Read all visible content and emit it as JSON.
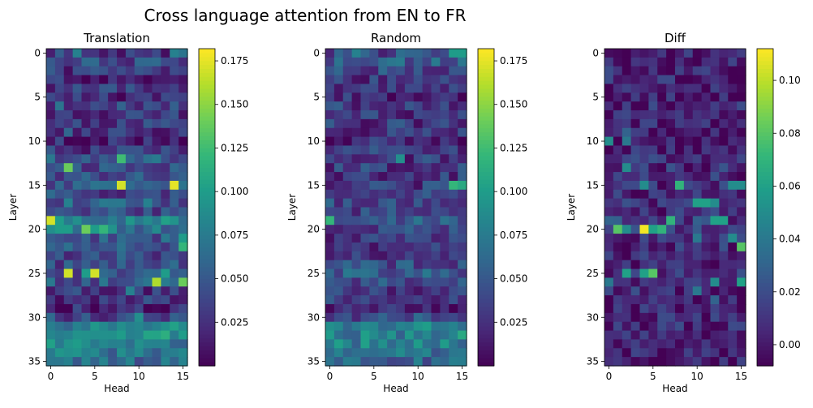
{
  "suptitle": "Cross language attention from EN to FR",
  "colors": {
    "viridis": [
      "#440154",
      "#482878",
      "#3e4989",
      "#31688e",
      "#26828e",
      "#1f9e89",
      "#35b779",
      "#6ece58",
      "#b5de2b",
      "#fde725"
    ]
  },
  "chart_data": [
    {
      "type": "heatmap",
      "title": "Translation",
      "xlabel": "Head",
      "ylabel": "Layer",
      "rows": 36,
      "cols": 16,
      "xticks": [
        0,
        5,
        10,
        15
      ],
      "yticks": [
        0,
        5,
        10,
        15,
        20,
        25,
        30,
        35
      ],
      "colorbar": {
        "min": 0.0,
        "max": 0.182,
        "ticks": [
          0.025,
          0.05,
          0.075,
          0.1,
          0.125,
          0.15,
          0.175
        ],
        "tick_labels": [
          "0.025",
          "0.050",
          "0.075",
          "0.100",
          "0.125",
          "0.150",
          "0.175"
        ]
      },
      "base_rows": [
        0.03,
        0.04,
        0.03,
        0.02,
        0.03,
        0.02,
        0.04,
        0.03,
        0.03,
        0.03,
        0.02,
        0.03,
        0.05,
        0.04,
        0.04,
        0.05,
        0.04,
        0.05,
        0.04,
        0.08,
        0.07,
        0.05,
        0.05,
        0.04,
        0.04,
        0.04,
        0.05,
        0.03,
        0.03,
        0.02,
        0.04,
        0.08,
        0.09,
        0.08,
        0.07,
        0.06
      ],
      "highlights": [
        [
          0,
          3,
          0.08
        ],
        [
          0,
          14,
          0.08
        ],
        [
          0,
          15,
          0.07
        ],
        [
          6,
          1,
          0.07
        ],
        [
          9,
          2,
          0.06
        ],
        [
          12,
          8,
          0.125
        ],
        [
          13,
          2,
          0.14
        ],
        [
          15,
          8,
          0.17
        ],
        [
          15,
          14,
          0.175
        ],
        [
          17,
          2,
          0.08
        ],
        [
          17,
          11,
          0.08
        ],
        [
          19,
          0,
          0.17
        ],
        [
          19,
          3,
          0.09
        ],
        [
          20,
          1,
          0.1
        ],
        [
          20,
          2,
          0.1
        ],
        [
          20,
          4,
          0.14
        ],
        [
          20,
          5,
          0.1
        ],
        [
          20,
          6,
          0.12
        ],
        [
          21,
          15,
          0.1
        ],
        [
          22,
          15,
          0.12
        ],
        [
          25,
          2,
          0.17
        ],
        [
          25,
          4,
          0.1
        ],
        [
          25,
          5,
          0.17
        ],
        [
          25,
          13,
          0.1
        ],
        [
          26,
          12,
          0.16
        ],
        [
          26,
          15,
          0.14
        ],
        [
          27,
          9,
          0.08
        ],
        [
          30,
          10,
          0.09
        ],
        [
          32,
          8,
          0.1
        ]
      ]
    },
    {
      "type": "heatmap",
      "title": "Random",
      "xlabel": "Head",
      "ylabel": "Layer",
      "rows": 36,
      "cols": 16,
      "xticks": [
        0,
        5,
        10,
        15
      ],
      "yticks": [
        0,
        5,
        10,
        15,
        20,
        25,
        30,
        35
      ],
      "colorbar": {
        "min": 0.0,
        "max": 0.182,
        "ticks": [
          0.025,
          0.05,
          0.075,
          0.1,
          0.125,
          0.15,
          0.175
        ],
        "tick_labels": [
          "0.025",
          "0.050",
          "0.075",
          "0.100",
          "0.125",
          "0.150",
          "0.175"
        ]
      },
      "base_rows": [
        0.04,
        0.05,
        0.04,
        0.03,
        0.03,
        0.02,
        0.03,
        0.03,
        0.03,
        0.03,
        0.02,
        0.03,
        0.03,
        0.03,
        0.03,
        0.03,
        0.03,
        0.04,
        0.04,
        0.05,
        0.04,
        0.03,
        0.03,
        0.03,
        0.04,
        0.05,
        0.04,
        0.03,
        0.03,
        0.02,
        0.04,
        0.08,
        0.08,
        0.08,
        0.07,
        0.06
      ],
      "highlights": [
        [
          0,
          3,
          0.08
        ],
        [
          0,
          14,
          0.1
        ],
        [
          0,
          15,
          0.1
        ],
        [
          1,
          1,
          0.07
        ],
        [
          12,
          8,
          0.09
        ],
        [
          15,
          14,
          0.12
        ],
        [
          15,
          15,
          0.11
        ],
        [
          19,
          0,
          0.12
        ],
        [
          24,
          5,
          0.06
        ],
        [
          25,
          4,
          0.07
        ],
        [
          32,
          15,
          0.11
        ]
      ]
    },
    {
      "type": "heatmap",
      "title": "Diff",
      "xlabel": "Head",
      "ylabel": "Layer",
      "rows": 36,
      "cols": 16,
      "xticks": [
        0,
        5,
        10,
        15
      ],
      "yticks": [
        0,
        5,
        10,
        15,
        20,
        25,
        30,
        35
      ],
      "colorbar": {
        "min": -0.008,
        "max": 0.112,
        "ticks": [
          0.0,
          0.02,
          0.04,
          0.06,
          0.08,
          0.1
        ],
        "tick_labels": [
          "0.00",
          "0.02",
          "0.04",
          "0.06",
          "0.08",
          "0.10"
        ]
      },
      "base_rows": [
        0.003,
        0.004,
        0.005,
        0.003,
        0.002,
        0.002,
        0.005,
        0.004,
        0.003,
        0.004,
        0.002,
        0.004,
        0.008,
        0.008,
        0.006,
        0.008,
        0.006,
        0.008,
        0.006,
        0.012,
        0.015,
        0.01,
        0.008,
        0.006,
        0.006,
        0.01,
        0.012,
        0.006,
        0.004,
        0.003,
        0.004,
        0.004,
        0.005,
        0.004,
        0.002,
        0.002
      ],
      "highlights": [
        [
          3,
          0,
          0.02
        ],
        [
          9,
          2,
          0.03
        ],
        [
          10,
          0,
          0.05
        ],
        [
          10,
          2,
          0.04
        ],
        [
          13,
          2,
          0.05
        ],
        [
          15,
          4,
          0.05
        ],
        [
          15,
          8,
          0.07
        ],
        [
          15,
          14,
          0.05
        ],
        [
          15,
          15,
          0.05
        ],
        [
          17,
          10,
          0.06
        ],
        [
          17,
          11,
          0.06
        ],
        [
          17,
          12,
          0.05
        ],
        [
          19,
          0,
          0.03
        ],
        [
          19,
          7,
          0.07
        ],
        [
          19,
          12,
          0.06
        ],
        [
          19,
          13,
          0.06
        ],
        [
          20,
          1,
          0.08
        ],
        [
          20,
          2,
          0.05
        ],
        [
          20,
          4,
          0.11
        ],
        [
          20,
          5,
          0.06
        ],
        [
          20,
          6,
          0.07
        ],
        [
          21,
          10,
          0.04
        ],
        [
          21,
          14,
          0.05
        ],
        [
          22,
          15,
          0.08
        ],
        [
          25,
          2,
          0.06
        ],
        [
          25,
          4,
          0.06
        ],
        [
          25,
          5,
          0.08
        ],
        [
          26,
          0,
          0.04
        ],
        [
          26,
          12,
          0.05
        ],
        [
          26,
          15,
          0.06
        ],
        [
          27,
          10,
          0.04
        ],
        [
          28,
          12,
          0.03
        ]
      ]
    }
  ]
}
